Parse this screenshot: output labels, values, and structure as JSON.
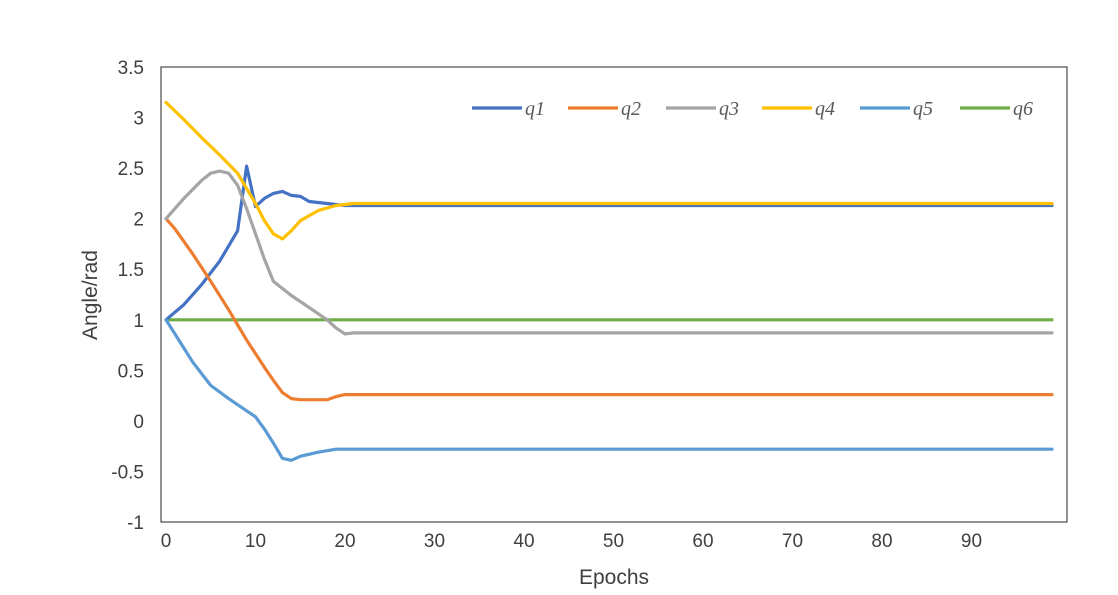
{
  "chart_data": {
    "type": "line",
    "title": "",
    "xlabel": "Epochs",
    "ylabel": "Angle/rad",
    "xlim": [
      0,
      100
    ],
    "ylim": [
      -1,
      3.5
    ],
    "x_ticks": [
      "0",
      "10",
      "20",
      "30",
      "40",
      "50",
      "60",
      "70",
      "80",
      "90"
    ],
    "x_tick_values": [
      0,
      10,
      20,
      30,
      40,
      50,
      60,
      70,
      80,
      90
    ],
    "y_ticks": [
      "-1",
      "-0.5",
      "0",
      "0.5",
      "1",
      "1.5",
      "2",
      "2.5",
      "3",
      "3.5"
    ],
    "y_tick_values": [
      -1,
      -0.5,
      0,
      0.5,
      1,
      1.5,
      2,
      2.5,
      3,
      3.5
    ],
    "grid": false,
    "legend_position": "top-right",
    "series": [
      {
        "name": "q1",
        "color": "#4472C4",
        "points": [
          [
            0,
            1.0
          ],
          [
            2,
            1.15
          ],
          [
            4,
            1.35
          ],
          [
            6,
            1.58
          ],
          [
            8,
            1.88
          ],
          [
            9,
            2.52
          ],
          [
            10,
            2.12
          ],
          [
            11,
            2.2
          ],
          [
            12,
            2.25
          ],
          [
            13,
            2.27
          ],
          [
            14,
            2.23
          ],
          [
            15,
            2.22
          ],
          [
            16,
            2.17
          ],
          [
            18,
            2.15
          ],
          [
            20,
            2.13
          ],
          [
            99,
            2.13
          ]
        ]
      },
      {
        "name": "q2",
        "color": "#ED7D31",
        "points": [
          [
            0,
            2.0
          ],
          [
            1,
            1.9
          ],
          [
            3,
            1.65
          ],
          [
            5,
            1.38
          ],
          [
            7,
            1.1
          ],
          [
            9,
            0.8
          ],
          [
            11,
            0.53
          ],
          [
            12,
            0.4
          ],
          [
            13,
            0.28
          ],
          [
            14,
            0.22
          ],
          [
            15,
            0.21
          ],
          [
            18,
            0.21
          ],
          [
            19,
            0.24
          ],
          [
            20,
            0.26
          ],
          [
            21,
            0.26
          ],
          [
            99,
            0.26
          ]
        ]
      },
      {
        "name": "q3",
        "color": "#A5A5A5",
        "points": [
          [
            0,
            2.0
          ],
          [
            2,
            2.2
          ],
          [
            4,
            2.38
          ],
          [
            5,
            2.45
          ],
          [
            6,
            2.47
          ],
          [
            7,
            2.45
          ],
          [
            8,
            2.33
          ],
          [
            9,
            2.1
          ],
          [
            10,
            1.85
          ],
          [
            11,
            1.6
          ],
          [
            12,
            1.38
          ],
          [
            14,
            1.24
          ],
          [
            16,
            1.12
          ],
          [
            18,
            1.0
          ],
          [
            19,
            0.92
          ],
          [
            20,
            0.86
          ],
          [
            21,
            0.87
          ],
          [
            99,
            0.87
          ]
        ]
      },
      {
        "name": "q4",
        "color": "#FFC000",
        "points": [
          [
            0,
            3.15
          ],
          [
            2,
            2.98
          ],
          [
            4,
            2.8
          ],
          [
            6,
            2.63
          ],
          [
            8,
            2.45
          ],
          [
            10,
            2.15
          ],
          [
            11,
            1.98
          ],
          [
            12,
            1.85
          ],
          [
            13,
            1.8
          ],
          [
            14,
            1.88
          ],
          [
            15,
            1.98
          ],
          [
            17,
            2.08
          ],
          [
            19,
            2.13
          ],
          [
            21,
            2.15
          ],
          [
            99,
            2.15
          ]
        ]
      },
      {
        "name": "q5",
        "color": "#5B9BD5",
        "points": [
          [
            0,
            1.0
          ],
          [
            1,
            0.86
          ],
          [
            2,
            0.72
          ],
          [
            3,
            0.58
          ],
          [
            5,
            0.35
          ],
          [
            7,
            0.22
          ],
          [
            9,
            0.1
          ],
          [
            10,
            0.04
          ],
          [
            11,
            -0.08
          ],
          [
            12,
            -0.22
          ],
          [
            13,
            -0.37
          ],
          [
            14,
            -0.39
          ],
          [
            15,
            -0.35
          ],
          [
            17,
            -0.31
          ],
          [
            19,
            -0.28
          ],
          [
            21,
            -0.28
          ],
          [
            99,
            -0.28
          ]
        ]
      },
      {
        "name": "q6",
        "color": "#70AD47",
        "points": [
          [
            0,
            1.0
          ],
          [
            99,
            1.0
          ]
        ]
      }
    ]
  }
}
